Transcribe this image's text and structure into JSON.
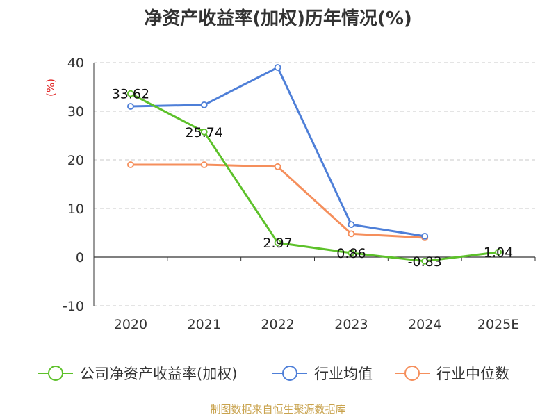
{
  "chart_data": {
    "type": "line",
    "title": "净资产收益率(加权)历年情况(%)",
    "ylabel": "(%)",
    "xlabel": "",
    "categories": [
      "2020",
      "2021",
      "2022",
      "2023",
      "2024",
      "2025E"
    ],
    "ylim": [
      -10,
      40
    ],
    "yticks": [
      -10,
      0,
      10,
      20,
      30,
      40
    ],
    "grid": true,
    "legend_position": "bottom",
    "series": [
      {
        "name": "公司净资产收益率(加权)",
        "color": "#5dc12a",
        "values": [
          33.62,
          25.74,
          2.97,
          0.86,
          -0.83,
          1.04
        ],
        "labels": [
          "33.62",
          "25.74",
          "2.97",
          "0.86",
          "-0.83",
          "1.04"
        ]
      },
      {
        "name": "行业均值",
        "color": "#4e7fd8",
        "values": [
          31.0,
          31.3,
          39.0,
          6.7,
          4.3,
          null
        ],
        "labels": null
      },
      {
        "name": "行业中位数",
        "color": "#f58f5c",
        "values": [
          19.0,
          19.0,
          18.6,
          4.8,
          4.0,
          null
        ],
        "labels": null
      }
    ]
  },
  "source": "制图数据来自恒生聚源数据库"
}
